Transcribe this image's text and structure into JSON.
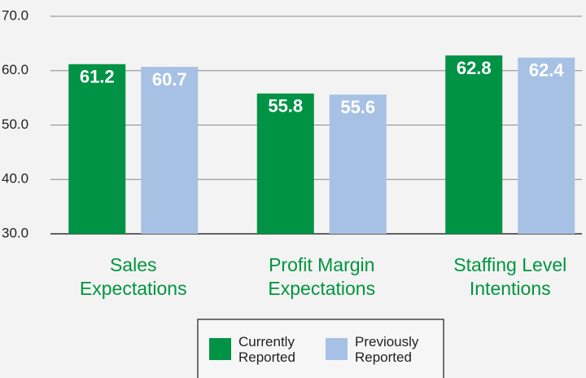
{
  "chart_data": {
    "type": "bar",
    "categories": [
      "Sales\nExpectations",
      "Profit Margin\nExpectations",
      "Staffing Level\nIntentions"
    ],
    "series": [
      {
        "name": "Currently\nReported",
        "color": "#009245",
        "values": [
          61.2,
          55.8,
          62.8
        ]
      },
      {
        "name": "Previously\nReported",
        "color": "#a7c1e4",
        "values": [
          60.7,
          55.6,
          62.4
        ]
      }
    ],
    "ylim": [
      30,
      70
    ],
    "yticks": [
      {
        "value": 30,
        "label": "30.0"
      },
      {
        "value": 40,
        "label": "40.0"
      },
      {
        "value": 50,
        "label": "50.0"
      },
      {
        "value": 60,
        "label": "60.0"
      },
      {
        "value": 70,
        "label": "70.0"
      }
    ],
    "grid": true
  }
}
